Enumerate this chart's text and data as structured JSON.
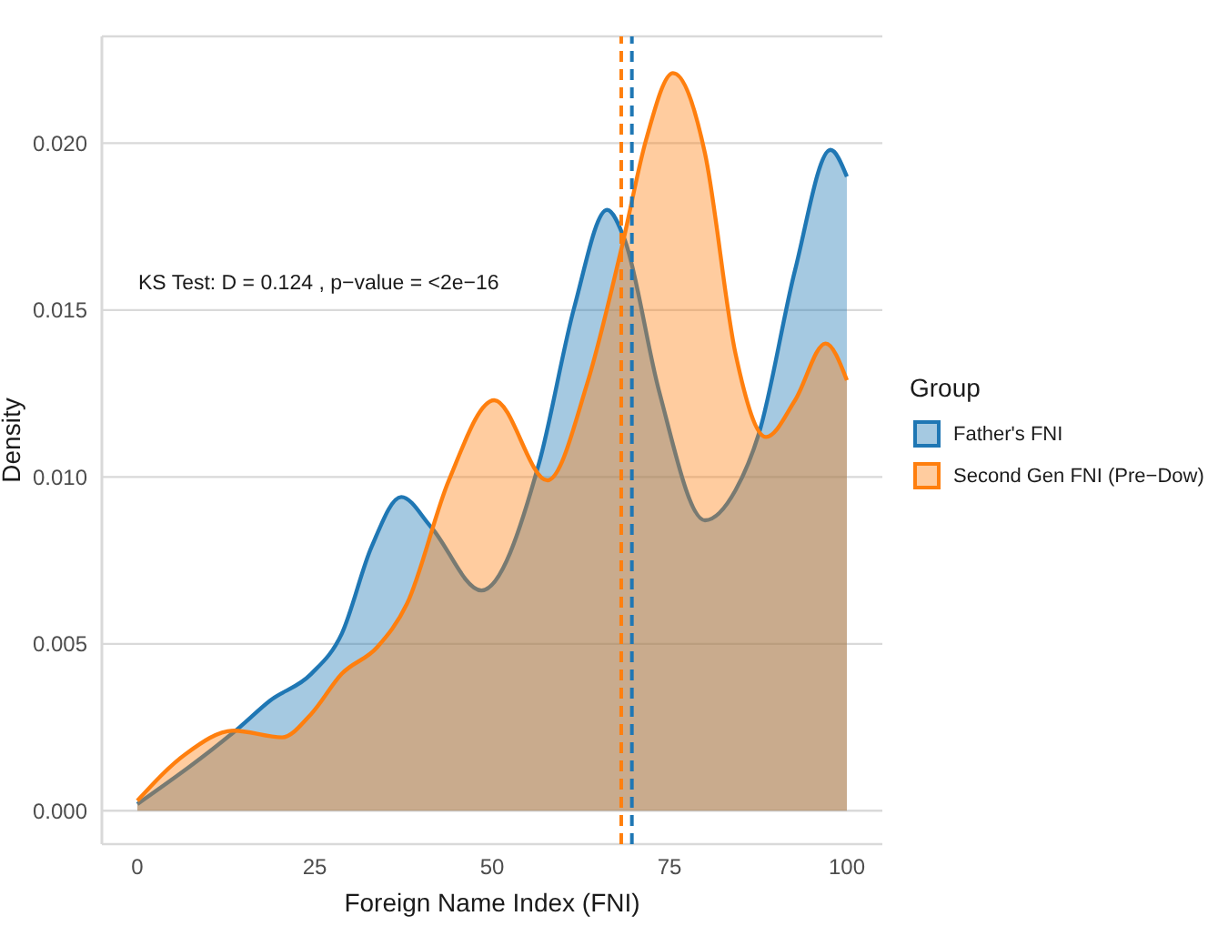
{
  "chart_data": {
    "type": "area",
    "xlabel": "Foreign Name Index (FNI)",
    "ylabel": "Density",
    "legend_title": "Group",
    "legend": "right",
    "grid": "y",
    "line_style": "solid",
    "xlim": [
      -5,
      105
    ],
    "xticks": [
      0,
      25,
      50,
      75,
      100
    ],
    "ylim": [
      -0.001,
      0.0232
    ],
    "yticks": [
      {
        "value": 0,
        "label": "0.000"
      },
      {
        "value": 0.005,
        "label": "0.005"
      },
      {
        "value": 0.01,
        "label": "0.010"
      },
      {
        "value": 0.015,
        "label": "0.015"
      },
      {
        "value": 0.02,
        "label": "0.020"
      }
    ],
    "annotations": [
      "KS Test: D = 0.124 , p−value = <2e−16"
    ],
    "series": [
      {
        "name": "Father's FNI",
        "color": "#1f77b4",
        "x": [
          0,
          14.4,
          18.7,
          24.5,
          28.8,
          33,
          37.2,
          41.4,
          48.5,
          56.6,
          61.6,
          66.2,
          68.7,
          73.5,
          80,
          84.3,
          87.6,
          92.7,
          97.7,
          100
        ],
        "values": [
          0.0002,
          0.0025,
          0.0033,
          0.0041,
          0.0053,
          0.0079,
          0.0094,
          0.0085,
          0.0066,
          0.0104,
          0.0151,
          0.018,
          0.0171,
          0.0126,
          0.0087,
          0.0096,
          0.0113,
          0.0162,
          0.0198,
          0.019
        ]
      },
      {
        "name": "Second Gen FNI (Pre−Dow)",
        "color": "#ff7f0e",
        "x": [
          0,
          6.8,
          13.6,
          20.4,
          24.5,
          28.8,
          33.8,
          38,
          43.9,
          50.3,
          57.8,
          63.4,
          68.4,
          71.7,
          75.5,
          80,
          84.3,
          88.6,
          92.7,
          97,
          100
        ],
        "values": [
          0.0003,
          0.0017,
          0.0024,
          0.0022,
          0.0029,
          0.0041,
          0.0049,
          0.0062,
          0.0099,
          0.0123,
          0.0099,
          0.0128,
          0.017,
          0.0201,
          0.0221,
          0.0197,
          0.0137,
          0.0112,
          0.0123,
          0.014,
          0.0129
        ]
      }
    ],
    "ref_lines": [
      {
        "axis": "x",
        "value": 68.2,
        "color": "#ff7f0e",
        "line_style": "dashed"
      },
      {
        "axis": "x",
        "value": 69.7,
        "color": "#1f77b4",
        "line_style": "dashed"
      }
    ]
  }
}
